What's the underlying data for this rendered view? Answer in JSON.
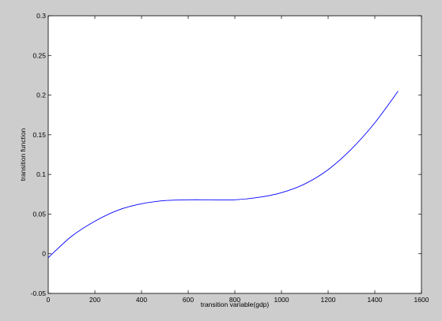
{
  "chart_data": {
    "type": "line",
    "title": "",
    "xlabel": "transition variable(gdp)",
    "ylabel": "transition function",
    "xlim": [
      0,
      1600
    ],
    "ylim": [
      -0.05,
      0.3
    ],
    "xticks": [
      0,
      200,
      400,
      600,
      800,
      1000,
      1200,
      1400,
      1600
    ],
    "xtick_labels": [
      "0",
      "200",
      "400",
      "600",
      "800",
      "1000",
      "1200",
      "1400",
      "1600"
    ],
    "yticks": [
      -0.05,
      0,
      0.05,
      0.1,
      0.15,
      0.2,
      0.25,
      0.3
    ],
    "ytick_labels": [
      "-0.05",
      "0",
      "0.05",
      "0.1",
      "0.15",
      "0.2",
      "0.25",
      "0.3"
    ],
    "grid": false,
    "series": [
      {
        "color": "#0000ff",
        "x": [
          0,
          100,
          200,
          300,
          400,
          500,
          600,
          700,
          800,
          900,
          1000,
          1100,
          1200,
          1300,
          1400,
          1500
        ],
        "y": [
          -0.005,
          0.022,
          0.041,
          0.055,
          0.063,
          0.067,
          0.068,
          0.068,
          0.068,
          0.071,
          0.077,
          0.088,
          0.106,
          0.132,
          0.165,
          0.205
        ]
      }
    ]
  }
}
